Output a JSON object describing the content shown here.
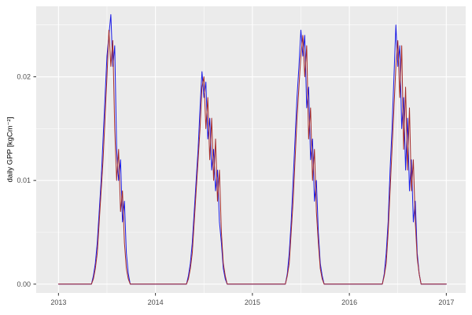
{
  "figure": {
    "panel_bg": "#EBEBEB",
    "grid_color": "#FFFFFF",
    "tick_mark_color": "#333333",
    "tick_label_color": "#4D4D4D",
    "axis_title_color": "#000000"
  },
  "chart_data": {
    "type": "line",
    "title": "",
    "xlabel": "",
    "ylabel": "daily GPP [kgCm⁻²]",
    "grid": true,
    "legend": "none",
    "xlim": [
      2012.77,
      2017.2
    ],
    "ylim": [
      -0.00085,
      0.0268
    ],
    "x_ticks": [
      2013,
      2014,
      2015,
      2016,
      2017
    ],
    "x_tick_labels": [
      "2013",
      "2014",
      "2015",
      "2016",
      "2017"
    ],
    "x_minor_ticks": [
      2013.5,
      2014.5,
      2015.5,
      2016.5
    ],
    "y_ticks": [
      0,
      0.01,
      0.02
    ],
    "y_tick_labels": [
      "0.00",
      "0.01",
      "0.02"
    ],
    "y_minor_ticks": [
      0.005,
      0.015,
      0.025
    ],
    "x_start": 2013,
    "x_step": 0.02,
    "series": [
      {
        "name": "gpp-line-blue",
        "color": "#1A1AE6",
        "values": [
          0,
          0,
          0,
          0,
          0,
          0,
          0,
          0,
          0,
          0,
          0,
          0,
          0,
          0,
          0,
          0,
          0,
          0,
          0.0008,
          0.002,
          0.004,
          0.007,
          0.01,
          0.014,
          0.018,
          0.022,
          0.024,
          0.026,
          0.021,
          0.023,
          0.013,
          0.01,
          0.012,
          0.006,
          0.008,
          0.003,
          0.001,
          0,
          0,
          0,
          0,
          0,
          0,
          0,
          0,
          0,
          0,
          0,
          0,
          0,
          0,
          0,
          0,
          0,
          0,
          0,
          0,
          0,
          0,
          0,
          0,
          0,
          0,
          0,
          0,
          0,
          0,
          0.0008,
          0.002,
          0.004,
          0.007,
          0.01,
          0.013,
          0.017,
          0.0205,
          0.018,
          0.0195,
          0.014,
          0.016,
          0.011,
          0.013,
          0.009,
          0.011,
          0.006,
          0.004,
          0.0015,
          0.0005,
          0,
          0,
          0,
          0,
          0,
          0,
          0,
          0,
          0,
          0,
          0,
          0,
          0,
          0,
          0,
          0,
          0,
          0,
          0,
          0,
          0,
          0,
          0,
          0,
          0,
          0,
          0,
          0,
          0,
          0,
          0,
          0.001,
          0.003,
          0.006,
          0.01,
          0.014,
          0.018,
          0.021,
          0.0245,
          0.022,
          0.024,
          0.017,
          0.019,
          0.012,
          0.014,
          0.008,
          0.01,
          0.005,
          0.002,
          0.0008,
          0,
          0,
          0,
          0,
          0,
          0,
          0,
          0,
          0,
          0,
          0,
          0,
          0,
          0,
          0,
          0,
          0,
          0,
          0,
          0,
          0,
          0,
          0,
          0,
          0,
          0,
          0,
          0,
          0,
          0,
          0,
          0.001,
          0.003,
          0.006,
          0.011,
          0.015,
          0.02,
          0.025,
          0.021,
          0.023,
          0.015,
          0.018,
          0.011,
          0.016,
          0.009,
          0.012,
          0.006,
          0.008,
          0.003,
          0.001,
          0,
          0,
          0,
          0,
          0,
          0,
          0,
          0,
          0,
          0,
          0,
          0,
          0,
          0
        ]
      },
      {
        "name": "gpp-line-red",
        "color": "#A52A2A",
        "values": [
          0,
          0,
          0,
          0,
          0,
          0,
          0,
          0,
          0,
          0,
          0,
          0,
          0,
          0,
          0,
          0,
          0,
          0,
          0.0005,
          0.0015,
          0.003,
          0.006,
          0.009,
          0.012,
          0.016,
          0.02,
          0.0245,
          0.021,
          0.0235,
          0.015,
          0.01,
          0.013,
          0.007,
          0.009,
          0.004,
          0.0015,
          0.0005,
          0,
          0,
          0,
          0,
          0,
          0,
          0,
          0,
          0,
          0,
          0,
          0,
          0,
          0,
          0,
          0,
          0,
          0,
          0,
          0,
          0,
          0,
          0,
          0,
          0,
          0,
          0,
          0,
          0,
          0,
          0.0005,
          0.0015,
          0.003,
          0.006,
          0.009,
          0.012,
          0.015,
          0.019,
          0.02,
          0.015,
          0.018,
          0.012,
          0.016,
          0.01,
          0.014,
          0.008,
          0.011,
          0.005,
          0.002,
          0.0008,
          0,
          0,
          0,
          0,
          0,
          0,
          0,
          0,
          0,
          0,
          0,
          0,
          0,
          0,
          0,
          0,
          0,
          0,
          0,
          0,
          0,
          0,
          0,
          0,
          0,
          0,
          0,
          0,
          0,
          0,
          0,
          0.0008,
          0.002,
          0.005,
          0.008,
          0.012,
          0.016,
          0.019,
          0.022,
          0.024,
          0.02,
          0.023,
          0.014,
          0.017,
          0.01,
          0.013,
          0.007,
          0.004,
          0.0015,
          0.0005,
          0,
          0,
          0,
          0,
          0,
          0,
          0,
          0,
          0,
          0,
          0,
          0,
          0,
          0,
          0,
          0,
          0,
          0,
          0,
          0,
          0,
          0,
          0,
          0,
          0,
          0,
          0,
          0,
          0,
          0,
          0,
          0.0008,
          0.002,
          0.005,
          0.009,
          0.013,
          0.017,
          0.021,
          0.0235,
          0.018,
          0.023,
          0.013,
          0.019,
          0.011,
          0.017,
          0.009,
          0.012,
          0.006,
          0.0025,
          0.001,
          0,
          0,
          0,
          0,
          0,
          0,
          0,
          0,
          0,
          0,
          0,
          0,
          0,
          0
        ]
      }
    ]
  }
}
